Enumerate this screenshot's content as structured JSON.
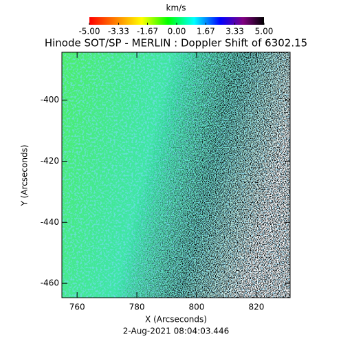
{
  "chart_data": {
    "type": "image",
    "title": "Hinode SOT/SP - MERLIN : Doppler Shift of 6302.15",
    "x_label": "X (Arcseconds)",
    "y_label": "Y (Arcseconds)",
    "date": "2-Aug-2021 08:04:03.446",
    "colorbar": {
      "label": "km/s",
      "lim": [
        -5,
        5
      ],
      "ticks": [
        {
          "value": -5,
          "label": "-5.00"
        },
        {
          "value": -3.33,
          "label": "-3.33"
        },
        {
          "value": -1.67,
          "label": "-1.67"
        },
        {
          "value": 0,
          "label": "0.00"
        },
        {
          "value": 1.67,
          "label": "1.67"
        },
        {
          "value": 3.33,
          "label": "3.33"
        },
        {
          "value": 5,
          "label": "5.00"
        }
      ]
    },
    "xlim": [
      754.9,
      831.3
    ],
    "xticks": [
      760,
      780,
      800,
      820
    ],
    "ylim": [
      -464.7,
      -384.3
    ],
    "yticks": [
      -400,
      -420,
      -440,
      -460
    ]
  }
}
